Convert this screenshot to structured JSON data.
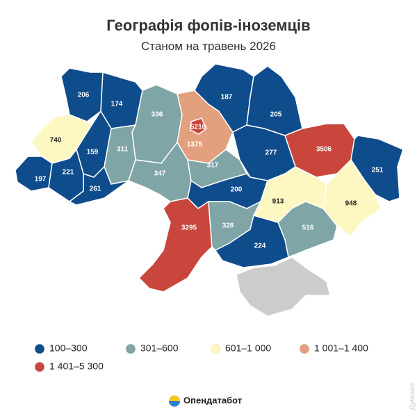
{
  "title": "Географія фопів-іноземців",
  "subtitle": "Станом на травень 2026",
  "regions": [
    {
      "value": 206,
      "color": "#0f4c8c"
    },
    {
      "value": 174,
      "color": "#0f4c8c"
    },
    {
      "value": 336,
      "color": "#7fa5a6"
    },
    {
      "value": 1375,
      "color": "#e3a07e"
    },
    {
      "value": 187,
      "color": "#0f4c8c"
    },
    {
      "value": 205,
      "color": "#0f4c8c"
    },
    {
      "value": 3506,
      "color": "#c9463d"
    },
    {
      "value": 251,
      "color": "#0f4c8c"
    },
    {
      "value": 740,
      "color": "#fdf7c2"
    },
    {
      "value": 159,
      "color": "#0f4c8c"
    },
    {
      "value": 311,
      "color": "#7fa5a6"
    },
    {
      "value": 347,
      "color": "#7fa5a6"
    },
    {
      "value": 317,
      "color": "#7fa5a6"
    },
    {
      "value": 277,
      "color": "#0f4c8c"
    },
    {
      "value": 197,
      "color": "#0f4c8c"
    },
    {
      "value": 221,
      "color": "#0f4c8c"
    },
    {
      "value": 261,
      "color": "#0f4c8c"
    },
    {
      "value": 200,
      "color": "#0f4c8c"
    },
    {
      "value": 913,
      "color": "#fdf7c2"
    },
    {
      "value": 3295,
      "color": "#c9463d"
    },
    {
      "value": 328,
      "color": "#7fa5a6"
    },
    {
      "value": 948,
      "color": "#fdf7c2"
    },
    {
      "value": 516,
      "color": "#7fa5a6"
    },
    {
      "value": 224,
      "color": "#0f4c8c"
    },
    {
      "value": 5216,
      "color": "#c9463d"
    }
  ],
  "no_data_color": "#cccccc",
  "legend": [
    {
      "label": "100–300",
      "color": "#0f4c8c"
    },
    {
      "label": "301–600",
      "color": "#7fa5a6"
    },
    {
      "label": "601–1 000",
      "color": "#fdf7c2"
    },
    {
      "label": "1 001–1 400",
      "color": "#e3a07e"
    },
    {
      "label": "1 401–5 300",
      "color": "#c9463d"
    }
  ],
  "logo": "Опендатабот",
  "watermark": "Думська"
}
